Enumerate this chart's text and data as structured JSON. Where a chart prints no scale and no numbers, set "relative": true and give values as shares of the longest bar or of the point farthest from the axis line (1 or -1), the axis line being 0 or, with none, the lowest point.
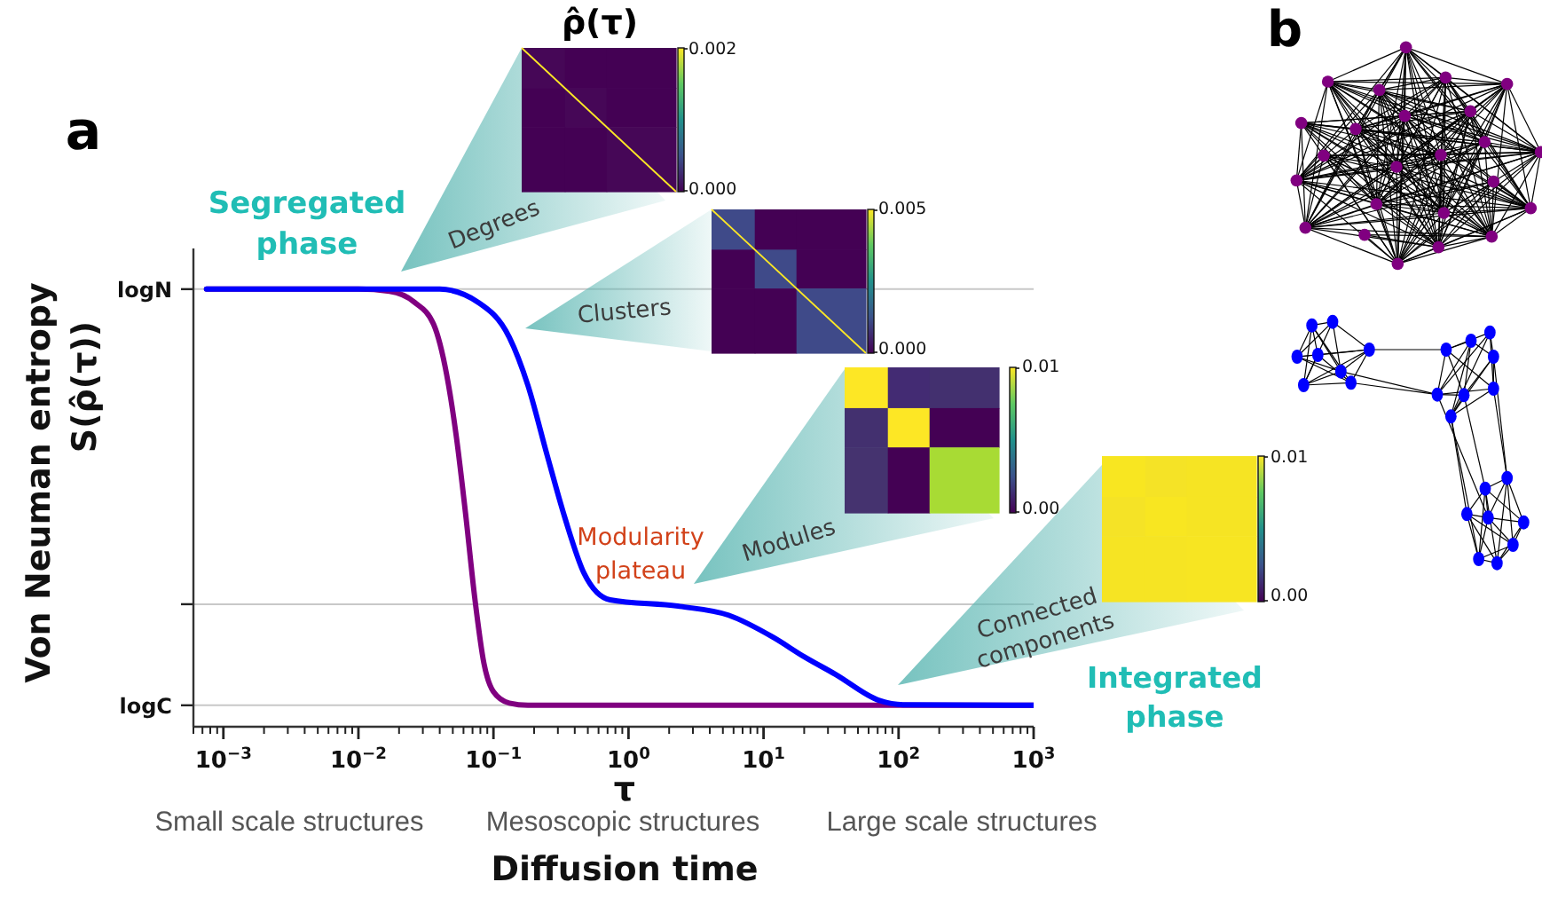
{
  "chart_data": {
    "type": "line",
    "relative": true,
    "xlabel": "τ",
    "ylabel": "Von Neuman entropy\nS(ρ̂(τ))",
    "series": [
      {
        "color": "#800080",
        "x": [
          0.00075,
          0.01,
          0.017,
          0.026,
          0.036,
          0.045,
          0.053,
          0.062,
          0.073,
          0.085,
          0.1,
          0.131,
          0.18,
          1000
        ],
        "values": [
          1,
          1,
          0.995,
          0.97,
          0.92,
          0.805,
          0.665,
          0.49,
          0.29,
          0.145,
          0.08,
          0.054,
          0.049,
          0.049
        ]
      },
      {
        "color": "#0000ff",
        "x": [
          0.00075,
          0.01,
          0.04,
          0.077,
          0.131,
          0.18,
          0.25,
          0.34,
          0.47,
          0.73,
          2.4,
          5.5,
          11.7,
          20,
          34,
          72,
          111,
          1000
        ],
        "values": [
          1,
          1,
          1,
          0.97,
          0.89,
          0.78,
          0.62,
          0.475,
          0.35,
          0.29,
          0.275,
          0.255,
          0.205,
          0.16,
          0.12,
          0.06,
          0.05,
          0.049
        ]
      }
    ],
    "xlim": [
      0.0006,
      1000
    ],
    "xticks": [
      {
        "value": 0.0006,
        "label": null
      },
      {
        "value": 0.0007,
        "label": null
      },
      {
        "value": 0.0008,
        "label": null
      },
      {
        "value": 0.0009,
        "label": null
      },
      {
        "value": 0.001,
        "label": "10$^{−3}$"
      },
      {
        "value": 0.002,
        "label": null
      },
      {
        "value": 0.003,
        "label": null
      },
      {
        "value": 0.004,
        "label": null
      },
      {
        "value": 0.005,
        "label": null
      },
      {
        "value": 0.006,
        "label": null
      },
      {
        "value": 0.007,
        "label": null
      },
      {
        "value": 0.008,
        "label": null
      },
      {
        "value": 0.009,
        "label": null
      },
      {
        "value": 0.01,
        "label": "10$^{−2}$"
      },
      {
        "value": 0.02,
        "label": null
      },
      {
        "value": 0.03,
        "label": null
      },
      {
        "value": 0.04,
        "label": null
      },
      {
        "value": 0.05,
        "label": null
      },
      {
        "value": 0.06,
        "label": null
      },
      {
        "value": 0.07,
        "label": null
      },
      {
        "value": 0.08,
        "label": null
      },
      {
        "value": 0.09,
        "label": null
      },
      {
        "value": 0.1,
        "label": "10$^{−1}$"
      },
      {
        "value": 0.2,
        "label": null
      },
      {
        "value": 0.3,
        "label": null
      },
      {
        "value": 0.4,
        "label": null
      },
      {
        "value": 0.5,
        "label": null
      },
      {
        "value": 0.6,
        "label": null
      },
      {
        "value": 0.7,
        "label": null
      },
      {
        "value": 0.8,
        "label": null
      },
      {
        "value": 0.9,
        "label": null
      },
      {
        "value": 1,
        "label": "10$^{0}$"
      },
      {
        "value": 2,
        "label": null
      },
      {
        "value": 3,
        "label": null
      },
      {
        "value": 4,
        "label": null
      },
      {
        "value": 5,
        "label": null
      },
      {
        "value": 6,
        "label": null
      },
      {
        "value": 7,
        "label": null
      },
      {
        "value": 8,
        "label": null
      },
      {
        "value": 9,
        "label": null
      },
      {
        "value": 10,
        "label": "10$^{1}$"
      },
      {
        "value": 20,
        "label": null
      },
      {
        "value": 30,
        "label": null
      },
      {
        "value": 40,
        "label": null
      },
      {
        "value": 50,
        "label": null
      },
      {
        "value": 60,
        "label": null
      },
      {
        "value": 70,
        "label": null
      },
      {
        "value": 80,
        "label": null
      },
      {
        "value": 90,
        "label": null
      },
      {
        "value": 100,
        "label": "10$^{2}$"
      },
      {
        "value": 200,
        "label": null
      },
      {
        "value": 300,
        "label": null
      },
      {
        "value": 400,
        "label": null
      },
      {
        "value": 500,
        "label": null
      },
      {
        "value": 600,
        "label": null
      },
      {
        "value": 700,
        "label": null
      },
      {
        "value": 800,
        "label": null
      },
      {
        "value": 900,
        "label": null
      },
      {
        "value": 1000,
        "label": "10$^{3}$"
      }
    ],
    "ref_lines": [
      {
        "axis": "y",
        "value": 1,
        "label": "logN",
        "color": "#c8c8c8"
      },
      {
        "axis": "y",
        "value": 0.28,
        "label": null,
        "color": "#c8c8c8"
      },
      {
        "axis": "y",
        "value": 0.049,
        "label": "logC",
        "color": "#c8c8c8"
      }
    ],
    "log": "x",
    "marker": "none",
    "line_style": "solid",
    "annotations": [
      "a",
      "b",
      "Segregated phase",
      "Integrated phase",
      "Modularity plateau",
      "Degrees",
      "Clusters",
      "Modules",
      "Connected components",
      "ρ̂(τ)",
      "0.002",
      "0.000",
      "0.005",
      "0.000",
      "0.01",
      "0.00",
      "0.01",
      "0.00",
      "Small scale structures",
      "Mesoscopic structures",
      "Large scale structures",
      "Diffusion time"
    ]
  }
}
